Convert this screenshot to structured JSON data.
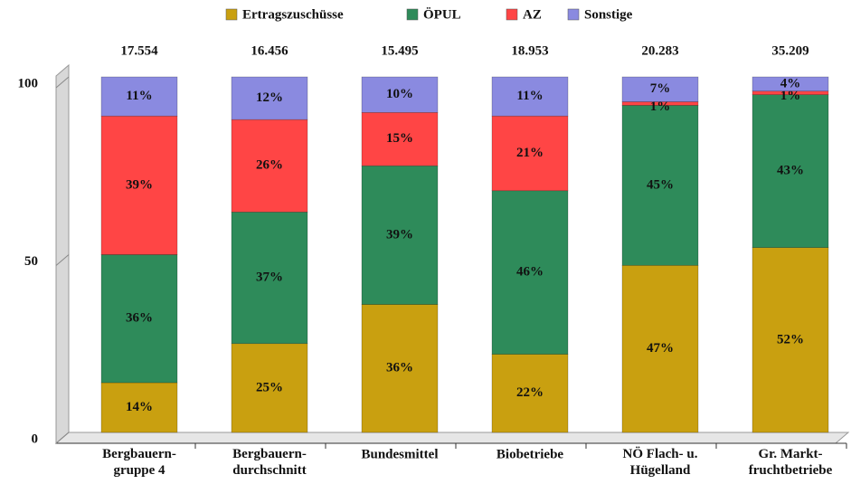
{
  "chart_data": {
    "type": "stacked_bar",
    "categories": [
      "Bergbauern-\ngruppe 4",
      "Bergbauern-\ndurchschnitt",
      "Bundesmittel",
      "Biobetriebe",
      "NÖ Flach- u.\nHügelland",
      "Gr. Markt-\nfruchtbetriebe"
    ],
    "totals": [
      {
        "value": 17554,
        "label": "17.554"
      },
      {
        "value": 16456,
        "label": "16.456"
      },
      {
        "value": 15495,
        "label": "15.495"
      },
      {
        "value": 18953,
        "label": "18.953"
      },
      {
        "value": 20283,
        "label": "20.283"
      },
      {
        "value": 35209,
        "label": "35.209"
      }
    ],
    "series": [
      {
        "name": "Ertragszuschüsse",
        "color": "#c9a010",
        "values": [
          14,
          25,
          36,
          22,
          47,
          52
        ],
        "value_labels": [
          "14%",
          "25%",
          "36%",
          "22%",
          "47%",
          "52%"
        ]
      },
      {
        "name": "ÖPUL",
        "color": "#2e8b5a",
        "values": [
          36,
          37,
          39,
          46,
          45,
          43
        ],
        "value_labels": [
          "36%",
          "37%",
          "39%",
          "46%",
          "45%",
          "43%"
        ]
      },
      {
        "name": "AZ",
        "color": "#ff4545",
        "values": [
          39,
          26,
          15,
          21,
          1,
          1
        ],
        "value_labels": [
          "39%",
          "26%",
          "15%",
          "21%",
          "1%",
          "1%"
        ]
      },
      {
        "name": "Sonstige",
        "color": "#8a8ae0",
        "values": [
          11,
          12,
          10,
          11,
          7,
          4
        ],
        "value_labels": [
          "11%",
          "12%",
          "10%",
          "11%",
          "7%",
          "4%"
        ]
      }
    ],
    "ylim": [
      0,
      100
    ],
    "yticks": [
      0,
      50,
      100
    ],
    "legend": "top"
  }
}
